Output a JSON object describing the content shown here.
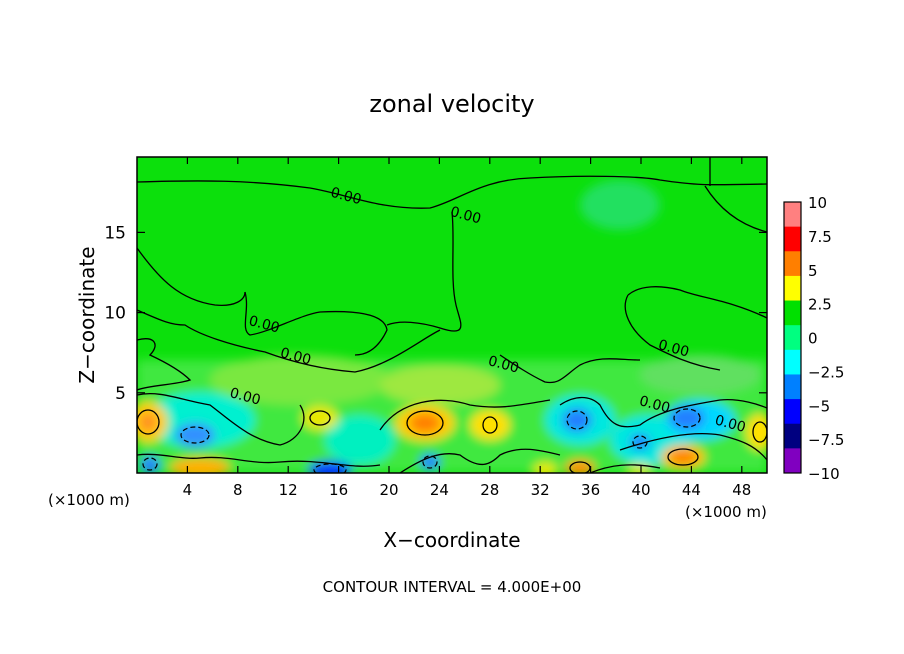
{
  "chart_data": {
    "type": "heatmap",
    "title": "zonal velocity",
    "xlabel": "X−coordinate",
    "ylabel": "Z−coordinate",
    "x_unit_left": "(×1000 m)",
    "x_unit_right": "(×1000 m)",
    "xlim": [
      0,
      50
    ],
    "ylim": [
      0,
      19.7
    ],
    "x_ticks": [
      4,
      8,
      12,
      16,
      20,
      24,
      28,
      32,
      36,
      40,
      44,
      48
    ],
    "y_ticks": [
      5,
      10,
      15
    ],
    "colorbar": {
      "ticks": [
        10,
        7.5,
        5,
        2.5,
        0,
        -2.5,
        -5,
        -7.5,
        -10
      ],
      "tick_labels": [
        "10",
        "7.5",
        "5",
        "2.5",
        "0",
        "−2.5",
        "−5",
        "−7.5",
        "−10"
      ],
      "colors": [
        "#ff8080",
        "#ff0000",
        "#ff7f00",
        "#ffff00",
        "#00e000",
        "#00ff80",
        "#00ffff",
        "#0080ff",
        "#0000ff",
        "#000080",
        "#8000c0"
      ]
    },
    "contour_labels": [
      {
        "text": "0.00",
        "x": 16.5,
        "y": 17.0
      },
      {
        "text": "0.00",
        "x": 26.0,
        "y": 15.8
      },
      {
        "text": "0.00",
        "x": 10.0,
        "y": 9.0
      },
      {
        "text": "0.00",
        "x": 12.5,
        "y": 7.0
      },
      {
        "text": "0.00",
        "x": 8.5,
        "y": 4.5
      },
      {
        "text": "0.00",
        "x": 29.0,
        "y": 6.5
      },
      {
        "text": "0.00",
        "x": 42.5,
        "y": 7.5
      },
      {
        "text": "0.00",
        "x": 41.0,
        "y": 4.0
      },
      {
        "text": "0.00",
        "x": 47.0,
        "y": 2.8
      }
    ],
    "footer": "CONTOUR INTERVAL = 4.000E+00"
  }
}
